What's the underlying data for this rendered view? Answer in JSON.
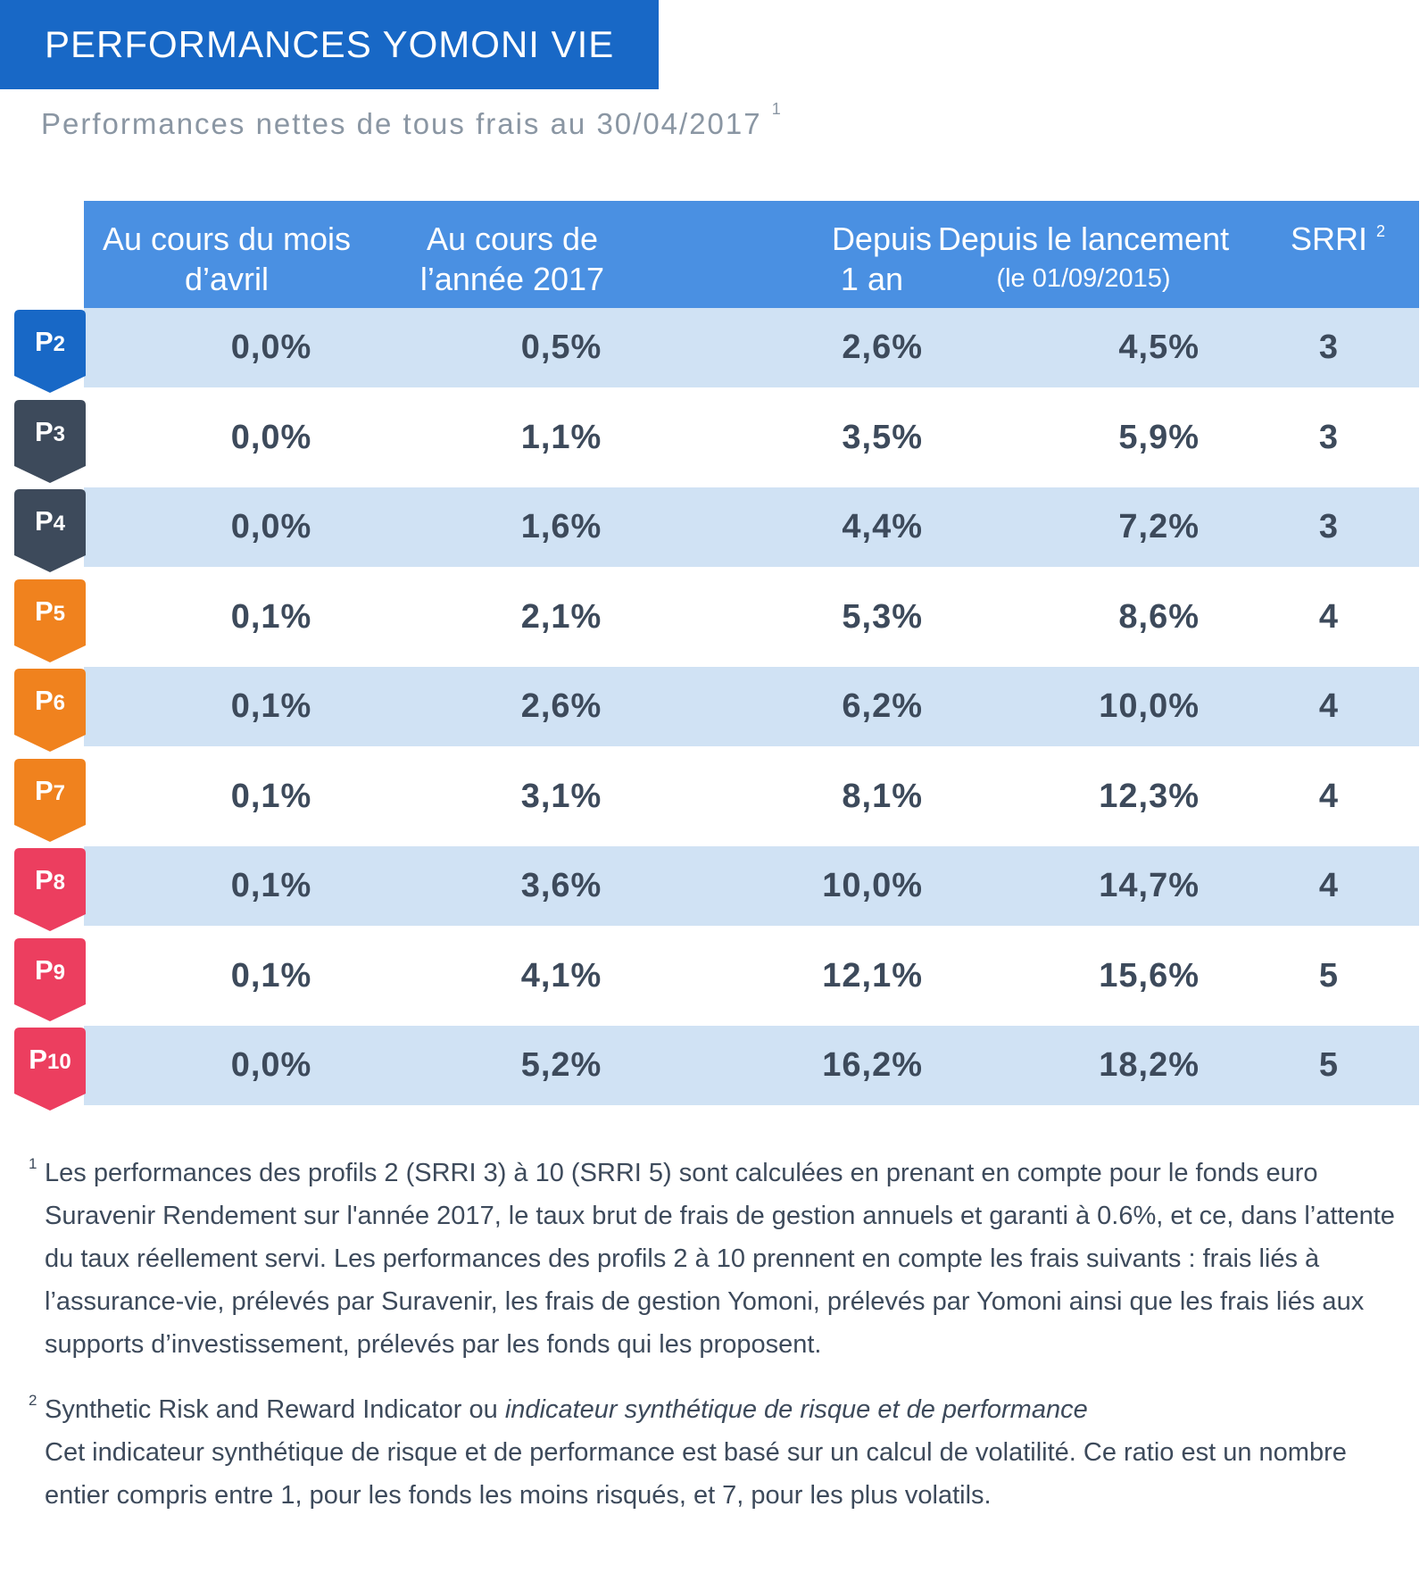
{
  "title": "PERFORMANCES YOMONI VIE",
  "subtitle": {
    "text": "Performances nettes de tous frais au 30/04/2017",
    "note_ref": "1"
  },
  "table": {
    "headers": [
      {
        "line1": "Au cours du mois",
        "line2": "d’avril"
      },
      {
        "line1": "Au cours de",
        "line2": "l’année 2017"
      },
      {
        "line1": "Depuis",
        "line2": "1 an"
      },
      {
        "line1": "Depuis le lancement",
        "line2": "(le 01/09/2015)"
      },
      {
        "line1": "SRRI",
        "note_ref": "2"
      }
    ],
    "rows": [
      {
        "profile_prefix": "P",
        "profile_num": "2",
        "color": "#1868c6",
        "values": [
          "0,0%",
          "0,5%",
          "2,6%",
          "4,5%",
          "3"
        ]
      },
      {
        "profile_prefix": "P",
        "profile_num": "3",
        "color": "#3d4a5b",
        "values": [
          "0,0%",
          "1,1%",
          "3,5%",
          "5,9%",
          "3"
        ]
      },
      {
        "profile_prefix": "P",
        "profile_num": "4",
        "color": "#3d4a5b",
        "values": [
          "0,0%",
          "1,6%",
          "4,4%",
          "7,2%",
          "3"
        ]
      },
      {
        "profile_prefix": "P",
        "profile_num": "5",
        "color": "#f0821e",
        "values": [
          "0,1%",
          "2,1%",
          "5,3%",
          "8,6%",
          "4"
        ]
      },
      {
        "profile_prefix": "P",
        "profile_num": "6",
        "color": "#f0821e",
        "values": [
          "0,1%",
          "2,6%",
          "6,2%",
          "10,0%",
          "4"
        ]
      },
      {
        "profile_prefix": "P",
        "profile_num": "7",
        "color": "#f0821e",
        "values": [
          "0,1%",
          "3,1%",
          "8,1%",
          "12,3%",
          "4"
        ]
      },
      {
        "profile_prefix": "P",
        "profile_num": "8",
        "color": "#ec3e5f",
        "values": [
          "0,1%",
          "3,6%",
          "10,0%",
          "14,7%",
          "4"
        ]
      },
      {
        "profile_prefix": "P",
        "profile_num": "9",
        "color": "#ec3e5f",
        "values": [
          "0,1%",
          "4,1%",
          "12,1%",
          "15,6%",
          "5"
        ]
      },
      {
        "profile_prefix": "P",
        "profile_num": "10",
        "color": "#ec3e5f",
        "values": [
          "0,0%",
          "5,2%",
          "16,2%",
          "18,2%",
          "5"
        ]
      }
    ]
  },
  "notes": {
    "note1": {
      "ref": "1",
      "text": "Les performances des profils 2 (SRRI 3) à 10 (SRRI 5) sont calculées en prenant en compte pour le fonds euro Suravenir Rendement sur l'année 2017, le taux brut de frais de gestion annuels et garanti à 0.6%, et ce, dans l’attente du taux réellement servi. Les performances des profils 2 à 10 prennent en compte les frais suivants : frais liés à l’assurance-vie, prélevés par Suravenir, les frais de gestion Yomoni, prélevés par Yomoni ainsi que les frais liés aux supports d’investissement, prélevés par les fonds qui les proposent."
    },
    "note2": {
      "ref": "2",
      "term": "Synthetic Risk and Reward Indicator ou",
      "term_italic": "indicateur synthétique de risque et de performance",
      "text": "Cet indicateur synthétique de risque et de performance est basé sur un calcul de volatilité. Ce ratio est un nombre entier compris entre 1, pour les fonds les moins risqués, et 7, pour les plus volatils."
    }
  },
  "colors": {
    "title_bg": "#1868c6",
    "header_bg": "#4a90e2",
    "row_shade": "#d0e2f4",
    "text": "#3d4a5b"
  }
}
